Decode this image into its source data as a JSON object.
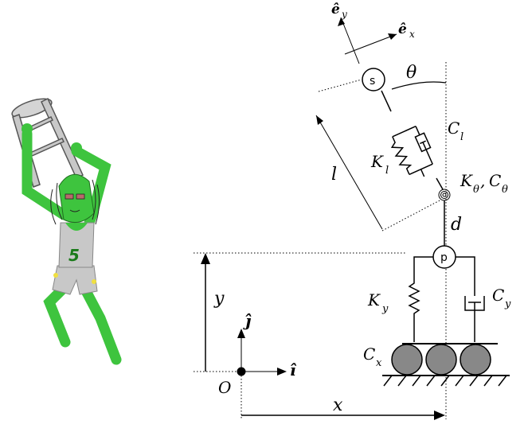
{
  "figure": {
    "jersey_number": "5",
    "skin_color": "#3ec43e",
    "outline_color": "#1f6f1f",
    "stool_color": "#c8c8c8"
  },
  "diagram": {
    "labels": {
      "e_y": "ê",
      "e_y_sub": "y",
      "e_x": "ê",
      "e_x_sub": "x",
      "theta": "θ",
      "s_node": "s",
      "p_node": "p",
      "C_l": "C",
      "C_l_sub": "l",
      "K_l": "K",
      "K_l_sub": "l",
      "K_theta_C_theta": "K",
      "K_theta_sub": "θ",
      "comma": ",",
      "C_theta": "C",
      "C_theta_sub": "θ",
      "l": "l",
      "d": "d",
      "K_y": "K",
      "K_y_sub": "y",
      "C_y": "C",
      "C_y_sub": "y",
      "C_x": "C",
      "C_x_sub": "x",
      "y": "y",
      "j_hat": "ĵ",
      "i_hat": "î",
      "origin": "O",
      "x": "x"
    },
    "roller_color": "#888888"
  }
}
